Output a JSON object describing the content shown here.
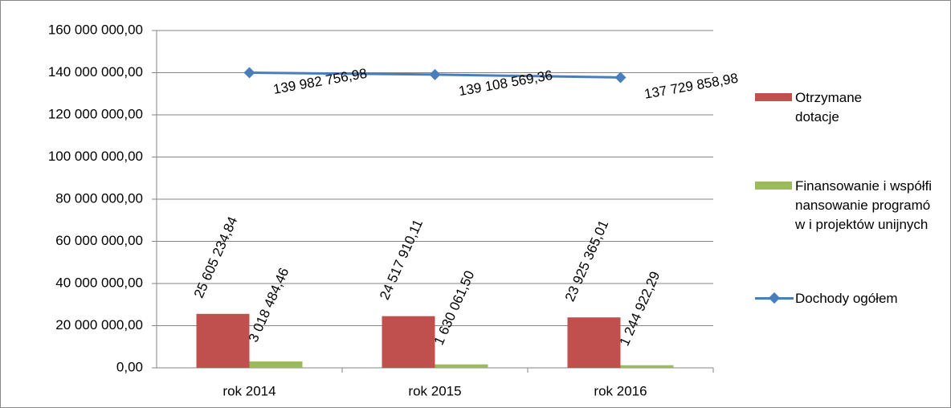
{
  "chart_data": {
    "type": "bar",
    "categories": [
      "rok 2014",
      "rok 2015",
      "rok 2016"
    ],
    "series": [
      {
        "name": "Otrzymane dotacje",
        "color": "#c0504d",
        "type": "bar",
        "values": [
          25605234.84,
          24517910.11,
          23925365.01
        ],
        "value_labels": [
          "25 605 234,84",
          "24 517 910,11",
          "23 925 365,01"
        ]
      },
      {
        "name": "Finansowanie i współfinansowanie programów i projektów unijnych",
        "color": "#9bbb59",
        "type": "bar",
        "values": [
          3018484.46,
          1630061.5,
          1244922.29
        ],
        "value_labels": [
          "3 018 484,46",
          "1 630 061,50",
          "1 244 922,29"
        ]
      },
      {
        "name": "Dochody ogółem",
        "color": "#4a7ebb",
        "type": "line",
        "values": [
          139982756.98,
          139108569.36,
          137729858.98
        ],
        "value_labels": [
          "139 982 756,98",
          "139 108 569,36",
          "137 729 858,98"
        ]
      }
    ],
    "ylim": [
      0,
      160000000
    ],
    "yticks": [
      {
        "value": 0,
        "label": "0,00"
      },
      {
        "value": 20000000,
        "label": "20 000 000,00"
      },
      {
        "value": 40000000,
        "label": "40 000 000,00"
      },
      {
        "value": 60000000,
        "label": "60 000 000,00"
      },
      {
        "value": 80000000,
        "label": "80 000 000,00"
      },
      {
        "value": 100000000,
        "label": "100 000 000,00"
      },
      {
        "value": 120000000,
        "label": "120 000 000,00"
      },
      {
        "value": 140000000,
        "label": "140 000 000,00"
      },
      {
        "value": 160000000,
        "label": "160 000 000,00"
      }
    ],
    "grid": true,
    "legend": "right"
  }
}
